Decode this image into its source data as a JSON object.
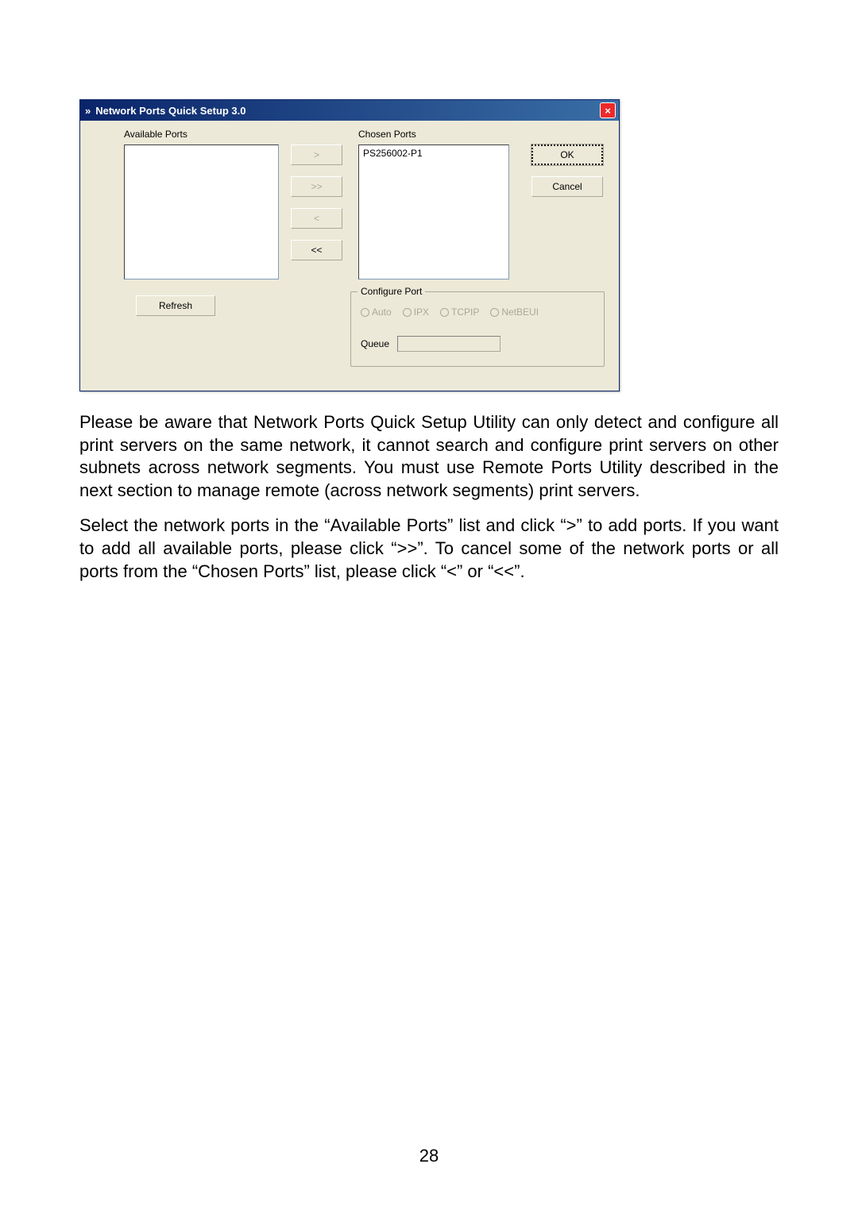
{
  "dialog": {
    "title": "Network Ports Quick Setup 3.0",
    "icon_label": "chevrons-icon",
    "close_label": "×",
    "available_label": "Available Ports",
    "chosen_label": "Chosen Ports",
    "chosen_items": [
      "PS256002-P1"
    ],
    "available_items": [],
    "move_add": ">",
    "move_add_all": ">>",
    "move_remove": "<",
    "move_remove_all": "<<",
    "refresh_label": "Refresh",
    "ok_label": "OK",
    "cancel_label": "Cancel",
    "configure_port": {
      "legend": "Configure Port",
      "radios": [
        "Auto",
        "IPX",
        "TCPIP",
        "NetBEUI"
      ],
      "queue_label": "Queue",
      "queue_value": ""
    }
  },
  "paragraphs": {
    "p1": "Please be aware that Network Ports Quick Setup Utility can only detect and configure all print servers on the same network, it cannot search and configure print servers on other subnets across network segments. You must use Remote Ports Utility described in the next section to manage remote (across network segments) print servers.",
    "p2": "Select the network ports in the “Available Ports” list and click “>” to add ports. If you want to add all available ports, please click “>>”. To cancel some of the network ports or all ports from the “Chosen Ports” list, please click “<” or “<<”."
  },
  "page_number": "28",
  "colors": {
    "titlebar_start": "#0a246a",
    "titlebar_end": "#3a6ea5",
    "dialog_bg": "#ece9d8",
    "close_bg": "#ef2929",
    "disabled_text": "#aca899",
    "listbox_border": "#7f9db9"
  }
}
